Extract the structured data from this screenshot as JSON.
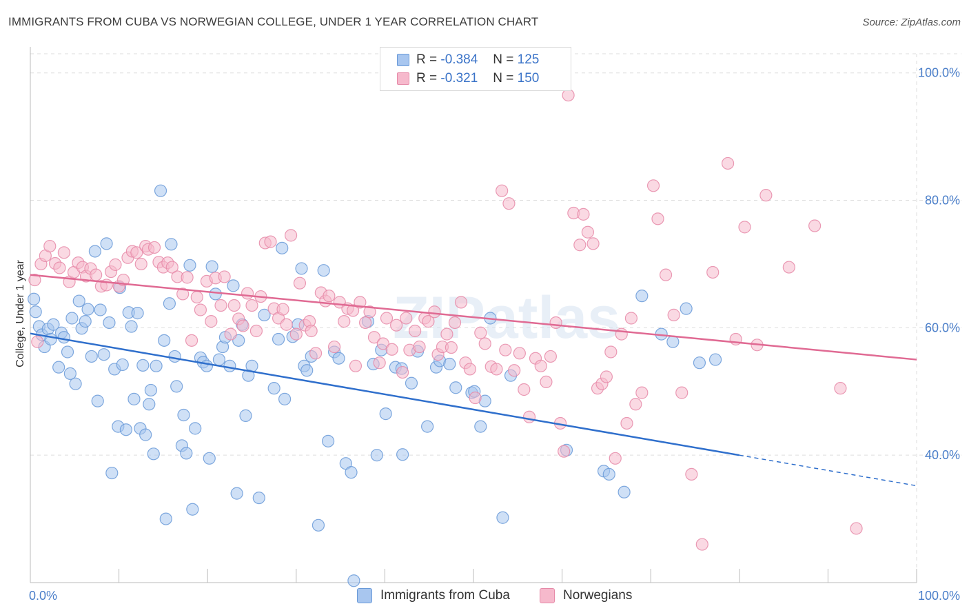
{
  "title": "IMMIGRANTS FROM CUBA VS NORWEGIAN COLLEGE, UNDER 1 YEAR CORRELATION CHART",
  "source": "Source: ZipAtlas.com",
  "watermark": "ZIPatlas",
  "legend": {
    "rows": [
      {
        "r_label": "R =",
        "r_value": "-0.384",
        "n_label": "N =",
        "n_value": "125",
        "color": "#a8c6ef",
        "border": "#6a9ad8"
      },
      {
        "r_label": "R =",
        "r_value": "-0.321",
        "n_label": "N =",
        "n_value": "150",
        "color": "#f6b9cc",
        "border": "#e68aa8"
      }
    ]
  },
  "bottom_legend": [
    {
      "label": "Immigrants from Cuba",
      "color": "#a8c6ef",
      "border": "#6a9ad8"
    },
    {
      "label": "Norwegians",
      "color": "#f6b9cc",
      "border": "#e68aa8"
    }
  ],
  "chart_data": {
    "type": "scatter",
    "title": "IMMIGRANTS FROM CUBA VS NORWEGIAN COLLEGE, UNDER 1 YEAR CORRELATION CHART",
    "xlabel": "",
    "ylabel": "College, Under 1 year",
    "xlim": [
      0,
      100
    ],
    "ylim": [
      20,
      103
    ],
    "x_tick_labels": [
      "0.0%",
      "100.0%"
    ],
    "y_ticks": [
      40,
      60,
      80,
      100
    ],
    "y_tick_labels": [
      "40.0%",
      "60.0%",
      "80.0%",
      "100.0%"
    ],
    "grid": true,
    "legend_position": "top-center",
    "series": [
      {
        "name": "Immigrants from Cuba",
        "color": "#6a9ad8",
        "fill": "#a8c6ef",
        "line_color": "#2f6fcc",
        "trend": {
          "x0": 0,
          "y0": 59.1,
          "x1": 80,
          "y1": 40.0,
          "dash_to_x": 100,
          "dash_to_y": 35.2
        },
        "points": [
          [
            0.4,
            64.5
          ],
          [
            0.6,
            62.5
          ],
          [
            1.0,
            60.2
          ],
          [
            1.3,
            58.9
          ],
          [
            1.6,
            57.0
          ],
          [
            2.0,
            59.8
          ],
          [
            2.3,
            58.2
          ],
          [
            2.6,
            60.5
          ],
          [
            3.2,
            53.8
          ],
          [
            3.5,
            59.2
          ],
          [
            3.8,
            58.5
          ],
          [
            4.2,
            56.2
          ],
          [
            4.5,
            52.8
          ],
          [
            4.7,
            61.5
          ],
          [
            5.1,
            51.2
          ],
          [
            5.5,
            64.2
          ],
          [
            5.8,
            59.9
          ],
          [
            6.2,
            61.0
          ],
          [
            6.5,
            62.9
          ],
          [
            6.9,
            55.5
          ],
          [
            7.3,
            72.0
          ],
          [
            7.6,
            48.5
          ],
          [
            7.9,
            62.8
          ],
          [
            8.3,
            55.8
          ],
          [
            8.6,
            73.2
          ],
          [
            8.9,
            60.8
          ],
          [
            9.2,
            37.2
          ],
          [
            9.5,
            53.5
          ],
          [
            9.9,
            44.5
          ],
          [
            10.1,
            66.3
          ],
          [
            10.4,
            54.2
          ],
          [
            10.8,
            44.0
          ],
          [
            11.1,
            62.4
          ],
          [
            11.4,
            60.2
          ],
          [
            11.7,
            48.8
          ],
          [
            12.1,
            62.3
          ],
          [
            12.4,
            44.2
          ],
          [
            12.7,
            54.1
          ],
          [
            13.0,
            43.2
          ],
          [
            13.4,
            48.0
          ],
          [
            13.6,
            50.2
          ],
          [
            13.9,
            40.2
          ],
          [
            14.2,
            54.0
          ],
          [
            14.7,
            81.5
          ],
          [
            15.1,
            58.0
          ],
          [
            15.3,
            30.0
          ],
          [
            15.7,
            63.8
          ],
          [
            15.9,
            73.1
          ],
          [
            16.3,
            55.5
          ],
          [
            16.5,
            50.8
          ],
          [
            17.1,
            41.5
          ],
          [
            17.3,
            46.3
          ],
          [
            17.6,
            40.3
          ],
          [
            18.0,
            69.8
          ],
          [
            18.3,
            31.5
          ],
          [
            18.6,
            44.2
          ],
          [
            19.2,
            55.3
          ],
          [
            19.5,
            54.6
          ],
          [
            19.9,
            54.0
          ],
          [
            20.2,
            39.5
          ],
          [
            20.5,
            69.6
          ],
          [
            20.9,
            65.3
          ],
          [
            21.3,
            55.0
          ],
          [
            21.7,
            57.0
          ],
          [
            22.0,
            58.5
          ],
          [
            22.5,
            54.0
          ],
          [
            22.9,
            66.6
          ],
          [
            23.3,
            34.0
          ],
          [
            23.5,
            58.0
          ],
          [
            23.9,
            60.5
          ],
          [
            24.3,
            46.2
          ],
          [
            24.6,
            52.5
          ],
          [
            25.0,
            54.0
          ],
          [
            25.8,
            33.3
          ],
          [
            26.4,
            62.0
          ],
          [
            27.5,
            50.5
          ],
          [
            28.0,
            58.2
          ],
          [
            28.4,
            72.5
          ],
          [
            28.7,
            48.8
          ],
          [
            29.6,
            58.6
          ],
          [
            30.2,
            60.5
          ],
          [
            30.6,
            69.3
          ],
          [
            30.9,
            54.0
          ],
          [
            31.2,
            53.3
          ],
          [
            31.7,
            55.5
          ],
          [
            32.5,
            29.0
          ],
          [
            33.1,
            69.0
          ],
          [
            33.6,
            42.2
          ],
          [
            34.3,
            56.2
          ],
          [
            34.8,
            55.2
          ],
          [
            35.6,
            38.7
          ],
          [
            36.2,
            37.3
          ],
          [
            36.5,
            20.3
          ],
          [
            38.1,
            61.0
          ],
          [
            38.7,
            54.3
          ],
          [
            39.1,
            40.0
          ],
          [
            39.6,
            56.5
          ],
          [
            40.1,
            46.5
          ],
          [
            41.2,
            53.8
          ],
          [
            41.9,
            53.6
          ],
          [
            42.0,
            40.1
          ],
          [
            43.0,
            51.3
          ],
          [
            43.7,
            56.3
          ],
          [
            44.8,
            44.5
          ],
          [
            45.8,
            53.8
          ],
          [
            46.2,
            54.8
          ],
          [
            47.3,
            54.3
          ],
          [
            48.0,
            50.6
          ],
          [
            49.8,
            49.8
          ],
          [
            50.1,
            50.0
          ],
          [
            50.8,
            44.5
          ],
          [
            51.3,
            48.5
          ],
          [
            51.9,
            61.5
          ],
          [
            53.3,
            30.2
          ],
          [
            54.2,
            52.5
          ],
          [
            60.5,
            40.8
          ],
          [
            64.7,
            37.5
          ],
          [
            65.3,
            37.0
          ],
          [
            67.0,
            34.2
          ],
          [
            69.0,
            65.0
          ],
          [
            71.2,
            59.0
          ],
          [
            72.5,
            57.8
          ],
          [
            74.0,
            63.0
          ],
          [
            75.5,
            54.5
          ],
          [
            77.3,
            55.0
          ]
        ]
      },
      {
        "name": "Norwegians",
        "color": "#e68aa8",
        "fill": "#f6b9cc",
        "line_color": "#e06a93",
        "trend": {
          "x0": 0,
          "y0": 68.3,
          "x1": 100,
          "y1": 55.0
        },
        "points": [
          [
            0.5,
            67.5
          ],
          [
            0.8,
            57.8
          ],
          [
            1.2,
            70.0
          ],
          [
            1.7,
            71.3
          ],
          [
            2.2,
            72.8
          ],
          [
            2.8,
            70.1
          ],
          [
            3.3,
            69.4
          ],
          [
            3.8,
            71.8
          ],
          [
            4.4,
            67.2
          ],
          [
            4.9,
            68.7
          ],
          [
            5.4,
            70.2
          ],
          [
            5.9,
            69.5
          ],
          [
            6.3,
            68.1
          ],
          [
            6.8,
            69.3
          ],
          [
            7.4,
            68.3
          ],
          [
            8.0,
            66.5
          ],
          [
            8.6,
            66.7
          ],
          [
            9.1,
            68.8
          ],
          [
            9.6,
            69.9
          ],
          [
            10.0,
            66.5
          ],
          [
            10.5,
            67.5
          ],
          [
            11.0,
            71.0
          ],
          [
            11.5,
            72.0
          ],
          [
            12.0,
            71.8
          ],
          [
            12.5,
            70.0
          ],
          [
            13.0,
            72.8
          ],
          [
            13.3,
            72.3
          ],
          [
            14.0,
            72.6
          ],
          [
            14.5,
            70.3
          ],
          [
            15.0,
            69.5
          ],
          [
            15.5,
            70.2
          ],
          [
            16.0,
            69.5
          ],
          [
            16.6,
            68.0
          ],
          [
            17.2,
            65.3
          ],
          [
            17.7,
            67.9
          ],
          [
            18.2,
            58.0
          ],
          [
            18.8,
            64.8
          ],
          [
            19.2,
            62.8
          ],
          [
            19.9,
            67.3
          ],
          [
            20.4,
            61.0
          ],
          [
            20.9,
            67.8
          ],
          [
            21.5,
            63.5
          ],
          [
            21.9,
            68.0
          ],
          [
            22.6,
            59.0
          ],
          [
            23.0,
            63.5
          ],
          [
            23.5,
            61.4
          ],
          [
            24.0,
            60.3
          ],
          [
            24.5,
            65.4
          ],
          [
            25.0,
            63.5
          ],
          [
            25.5,
            59.5
          ],
          [
            26.0,
            64.9
          ],
          [
            26.5,
            73.3
          ],
          [
            27.1,
            73.5
          ],
          [
            27.5,
            63.0
          ],
          [
            28.0,
            61.5
          ],
          [
            28.5,
            62.9
          ],
          [
            28.9,
            60.5
          ],
          [
            29.4,
            74.5
          ],
          [
            30.0,
            59.0
          ],
          [
            30.4,
            67.0
          ],
          [
            31.0,
            60.4
          ],
          [
            31.5,
            61.0
          ],
          [
            31.7,
            59.5
          ],
          [
            32.2,
            56.0
          ],
          [
            32.8,
            65.5
          ],
          [
            33.3,
            64.2
          ],
          [
            33.7,
            65.0
          ],
          [
            34.3,
            57.0
          ],
          [
            34.9,
            64.0
          ],
          [
            35.4,
            61.0
          ],
          [
            35.8,
            63.0
          ],
          [
            36.4,
            62.7
          ],
          [
            36.7,
            54.0
          ],
          [
            37.2,
            64.0
          ],
          [
            37.8,
            60.8
          ],
          [
            38.3,
            62.5
          ],
          [
            38.8,
            58.5
          ],
          [
            39.4,
            54.5
          ],
          [
            39.8,
            57.5
          ],
          [
            40.2,
            61.5
          ],
          [
            40.8,
            56.6
          ],
          [
            41.3,
            60.4
          ],
          [
            42.0,
            53.0
          ],
          [
            42.4,
            61.5
          ],
          [
            42.8,
            56.5
          ],
          [
            43.4,
            59.5
          ],
          [
            43.9,
            57.0
          ],
          [
            44.5,
            61.5
          ],
          [
            44.9,
            61.0
          ],
          [
            45.6,
            62.5
          ],
          [
            46.0,
            55.8
          ],
          [
            46.5,
            57.0
          ],
          [
            47.0,
            59.0
          ],
          [
            47.5,
            56.9
          ],
          [
            47.9,
            60.8
          ],
          [
            48.6,
            64.0
          ],
          [
            49.1,
            54.5
          ],
          [
            49.6,
            53.5
          ],
          [
            50.2,
            49.0
          ],
          [
            50.8,
            59.2
          ],
          [
            51.3,
            57.5
          ],
          [
            52.0,
            53.9
          ],
          [
            52.6,
            53.5
          ],
          [
            53.2,
            81.5
          ],
          [
            53.6,
            56.5
          ],
          [
            54.0,
            79.5
          ],
          [
            54.6,
            53.3
          ],
          [
            55.2,
            56.0
          ],
          [
            55.7,
            50.3
          ],
          [
            56.3,
            46.0
          ],
          [
            57.0,
            55.2
          ],
          [
            57.6,
            54.0
          ],
          [
            58.2,
            51.5
          ],
          [
            58.7,
            55.5
          ],
          [
            59.3,
            60.8
          ],
          [
            59.8,
            45.0
          ],
          [
            60.2,
            40.6
          ],
          [
            60.7,
            96.5
          ],
          [
            61.3,
            78.0
          ],
          [
            62.0,
            73.0
          ],
          [
            62.4,
            77.8
          ],
          [
            62.9,
            75.0
          ],
          [
            63.5,
            73.2
          ],
          [
            64.0,
            50.5
          ],
          [
            64.5,
            51.2
          ],
          [
            65.0,
            52.3
          ],
          [
            65.5,
            56.2
          ],
          [
            66.0,
            39.5
          ],
          [
            66.7,
            59.0
          ],
          [
            67.3,
            45.0
          ],
          [
            67.8,
            61.5
          ],
          [
            68.3,
            48.0
          ],
          [
            69.0,
            49.8
          ],
          [
            70.3,
            82.3
          ],
          [
            70.8,
            77.1
          ],
          [
            71.7,
            68.3
          ],
          [
            72.6,
            62.0
          ],
          [
            73.5,
            49.8
          ],
          [
            74.6,
            37.0
          ],
          [
            75.8,
            26.0
          ],
          [
            77.0,
            68.7
          ],
          [
            78.7,
            85.8
          ],
          [
            79.6,
            58.2
          ],
          [
            80.6,
            75.8
          ],
          [
            82.0,
            57.3
          ],
          [
            83.0,
            80.8
          ],
          [
            85.6,
            69.5
          ],
          [
            88.5,
            76.0
          ],
          [
            91.4,
            50.5
          ],
          [
            93.2,
            28.5
          ]
        ]
      }
    ]
  }
}
